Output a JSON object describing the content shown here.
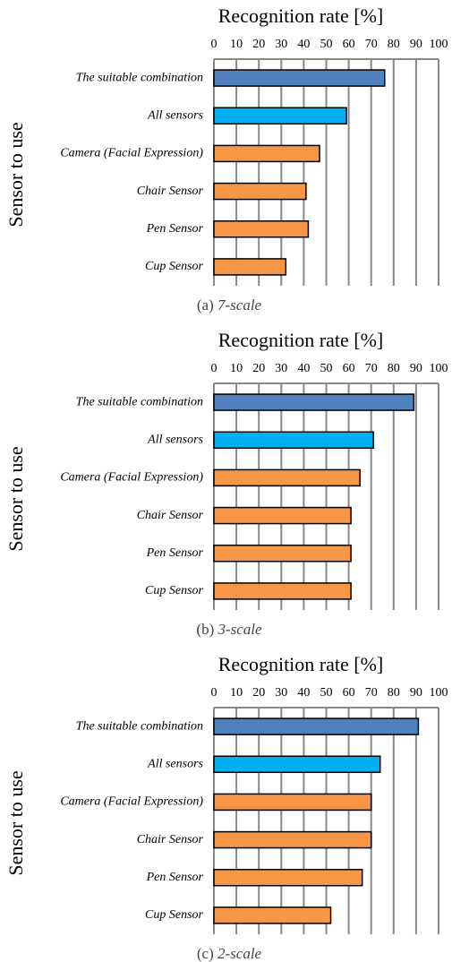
{
  "chart_data": [
    {
      "type": "bar",
      "title": "Recognition rate [%]",
      "ylabel": "Sensor to use",
      "caption_label": "(a)",
      "caption_text": "7-scale",
      "categories": [
        "The suitable combination",
        "All sensors",
        "Camera (Facial Expression)",
        "Chair Sensor",
        "Pen Sensor",
        "Cup Sensor"
      ],
      "values": [
        76,
        59,
        47,
        41,
        42,
        32
      ],
      "colors": [
        "#4f81bd",
        "#00b0f0",
        "#f79646",
        "#f79646",
        "#f79646",
        "#f79646"
      ],
      "xlim": [
        0,
        100
      ],
      "xticks": [
        0,
        10,
        20,
        30,
        40,
        50,
        60,
        70,
        80,
        90,
        100
      ],
      "grid": true
    },
    {
      "type": "bar",
      "title": "Recognition rate [%]",
      "ylabel": "Sensor to use",
      "caption_label": "(b)",
      "caption_text": "3-scale",
      "categories": [
        "The suitable combination",
        "All sensors",
        "Camera (Facial Expression)",
        "Chair Sensor",
        "Pen Sensor",
        "Cup Sensor"
      ],
      "values": [
        89,
        71,
        65,
        61,
        61,
        61
      ],
      "colors": [
        "#4f81bd",
        "#00b0f0",
        "#f79646",
        "#f79646",
        "#f79646",
        "#f79646"
      ],
      "xlim": [
        0,
        100
      ],
      "xticks": [
        0,
        10,
        20,
        30,
        40,
        50,
        60,
        70,
        80,
        90,
        100
      ],
      "grid": true
    },
    {
      "type": "bar",
      "title": "Recognition rate [%]",
      "ylabel": "Sensor to use",
      "caption_label": "(c)",
      "caption_text": "2-scale",
      "categories": [
        "The suitable combination",
        "All sensors",
        "Camera (Facial Expression)",
        "Chair Sensor",
        "Pen Sensor",
        "Cup Sensor"
      ],
      "values": [
        91,
        74,
        70,
        70,
        66,
        52
      ],
      "colors": [
        "#4f81bd",
        "#00b0f0",
        "#f79646",
        "#f79646",
        "#f79646",
        "#f79646"
      ],
      "xlim": [
        0,
        100
      ],
      "xticks": [
        0,
        10,
        20,
        30,
        40,
        50,
        60,
        70,
        80,
        90,
        100
      ],
      "grid": true
    }
  ]
}
